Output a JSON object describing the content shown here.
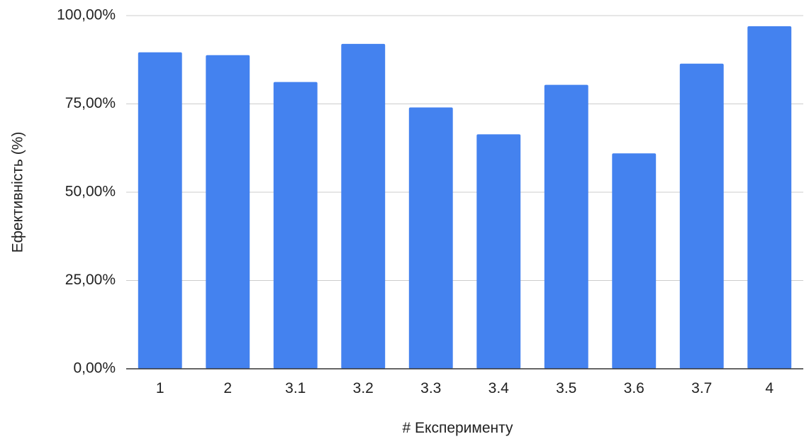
{
  "chart_data": {
    "type": "bar",
    "title": "",
    "xlabel": "# Експерименту",
    "ylabel": "Ефективність (%)",
    "categories": [
      "1",
      "2",
      "3.1",
      "3.2",
      "3.3",
      "3.4",
      "3.5",
      "3.6",
      "3.7",
      "4"
    ],
    "values": [
      89.6,
      88.8,
      81.2,
      92.0,
      74.0,
      66.4,
      80.4,
      61.0,
      86.4,
      97.0
    ],
    "ylim": [
      0,
      100
    ],
    "yticks": [
      0,
      25,
      50,
      75,
      100
    ],
    "ytick_labels": [
      "0,00%",
      "25,00%",
      "50,00%",
      "75,00%",
      "100,00%"
    ],
    "grid": true,
    "legend": "none",
    "bar_color": "#4482ef",
    "grid_color": "#cccccc",
    "axis_color": "#333333"
  }
}
